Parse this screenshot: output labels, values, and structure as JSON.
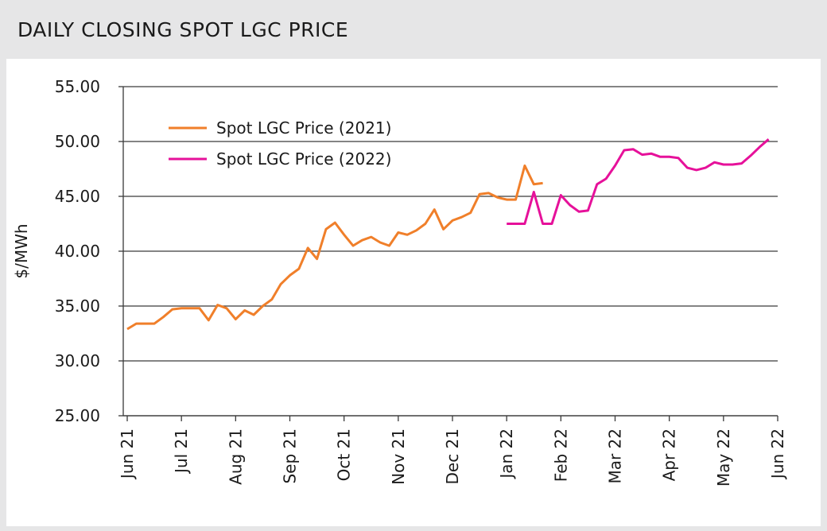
{
  "chart_data": {
    "type": "line",
    "title": "DAILY CLOSING SPOT LGC PRICE",
    "y_label": "$/MWh",
    "categories": [
      "Jun 21",
      null,
      null,
      null,
      null,
      null,
      "Jul 21",
      null,
      null,
      null,
      null,
      null,
      "Aug 21",
      null,
      null,
      null,
      null,
      null,
      "Sep 21",
      null,
      null,
      null,
      null,
      null,
      "Oct 21",
      null,
      null,
      null,
      null,
      null,
      "Nov 21",
      null,
      null,
      null,
      null,
      null,
      "Dec 21",
      null,
      null,
      null,
      null,
      null,
      "Jan 22",
      null,
      null,
      null,
      null,
      null,
      "Feb 22",
      null,
      null,
      null,
      null,
      null,
      "Mar 22",
      null,
      null,
      null,
      null,
      null,
      "Apr 22",
      null,
      null,
      null,
      null,
      null,
      "May 22",
      null,
      null,
      null,
      null,
      null,
      "Jun 22"
    ],
    "series": [
      {
        "name": "Spot LGC Price (2021)",
        "color": "#f07f2a",
        "values": [
          32.9,
          33.4,
          33.4,
          33.4,
          34.0,
          34.7,
          34.8,
          34.8,
          34.8,
          33.7,
          35.1,
          34.8,
          33.8,
          34.6,
          34.2,
          35.0,
          35.6,
          37.0,
          37.8,
          38.4,
          40.3,
          39.3,
          42.0,
          42.6,
          41.5,
          40.5,
          41.0,
          41.3,
          40.8,
          40.5,
          41.7,
          41.5,
          41.9,
          42.5,
          43.8,
          42.0,
          42.8,
          43.1,
          43.5,
          45.2,
          45.3,
          44.9,
          44.7,
          44.7,
          47.8,
          46.1,
          46.2,
          null,
          null,
          null,
          null,
          null,
          null,
          null,
          null,
          null,
          null,
          null,
          null,
          null,
          null,
          null,
          null,
          null,
          null,
          null,
          null,
          null,
          null,
          null,
          null,
          null,
          null
        ]
      },
      {
        "name": "Spot LGC Price (2022)",
        "color": "#e6119a",
        "values": [
          null,
          null,
          null,
          null,
          null,
          null,
          null,
          null,
          null,
          null,
          null,
          null,
          null,
          null,
          null,
          null,
          null,
          null,
          null,
          null,
          null,
          null,
          null,
          null,
          null,
          null,
          null,
          null,
          null,
          null,
          null,
          null,
          null,
          null,
          null,
          null,
          null,
          null,
          null,
          null,
          null,
          null,
          42.5,
          42.5,
          42.5,
          45.4,
          42.5,
          42.5,
          45.1,
          44.2,
          43.6,
          43.7,
          46.1,
          46.6,
          47.8,
          49.2,
          49.3,
          48.8,
          48.9,
          48.6,
          48.6,
          48.5,
          47.6,
          47.4,
          47.6,
          48.1,
          47.9,
          47.9,
          48.0,
          48.7,
          49.5,
          50.2,
          null
        ]
      }
    ],
    "ylim": [
      25,
      55
    ],
    "yticks": [
      {
        "value": 25,
        "label": "25.00"
      },
      {
        "value": 30,
        "label": "30.00"
      },
      {
        "value": 35,
        "label": "35.00"
      },
      {
        "value": 40,
        "label": "40.00"
      },
      {
        "value": 45,
        "label": "45.00"
      },
      {
        "value": 50,
        "label": "50.00"
      },
      {
        "value": 55,
        "label": "55.00"
      }
    ],
    "grid": true,
    "legend": "top-left"
  }
}
